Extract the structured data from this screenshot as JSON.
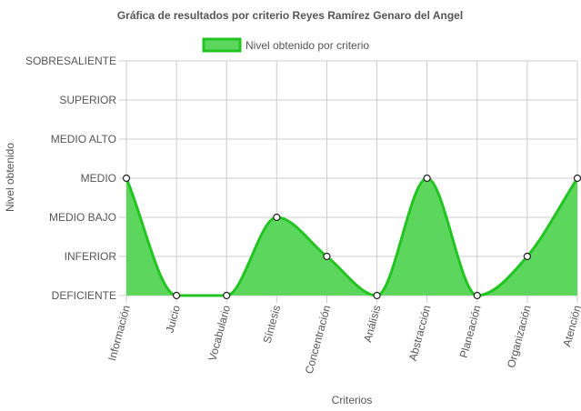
{
  "colors": {
    "fill": "#5cd65c",
    "line": "#22c422",
    "grid": "#cccccc",
    "text": "#555555"
  },
  "chart_data": {
    "type": "area",
    "title": "Gráfica de resultados por criterio Reyes Ramírez Genaro del Angel",
    "xlabel": "Criterios",
    "ylabel": "Nivel obtenido",
    "y_levels": [
      "DEFICIENTE",
      "INFERIOR",
      "MEDIO BAJO",
      "MEDIO",
      "MEDIO ALTO",
      "SUPERIOR",
      "SOBRESALIENTE"
    ],
    "ylim": [
      0,
      6
    ],
    "grid": true,
    "legend_position": "top",
    "categories": [
      "Información",
      "Juicio",
      "Vocabulario",
      "Síntesis",
      "Concentración",
      "Análisis",
      "Abstracción",
      "Planeación",
      "Organización",
      "Atención"
    ],
    "series": [
      {
        "name": "Nivel obtenido por criterio",
        "values": [
          3,
          0,
          0,
          2,
          1,
          0,
          3,
          0,
          1,
          3
        ]
      }
    ]
  }
}
